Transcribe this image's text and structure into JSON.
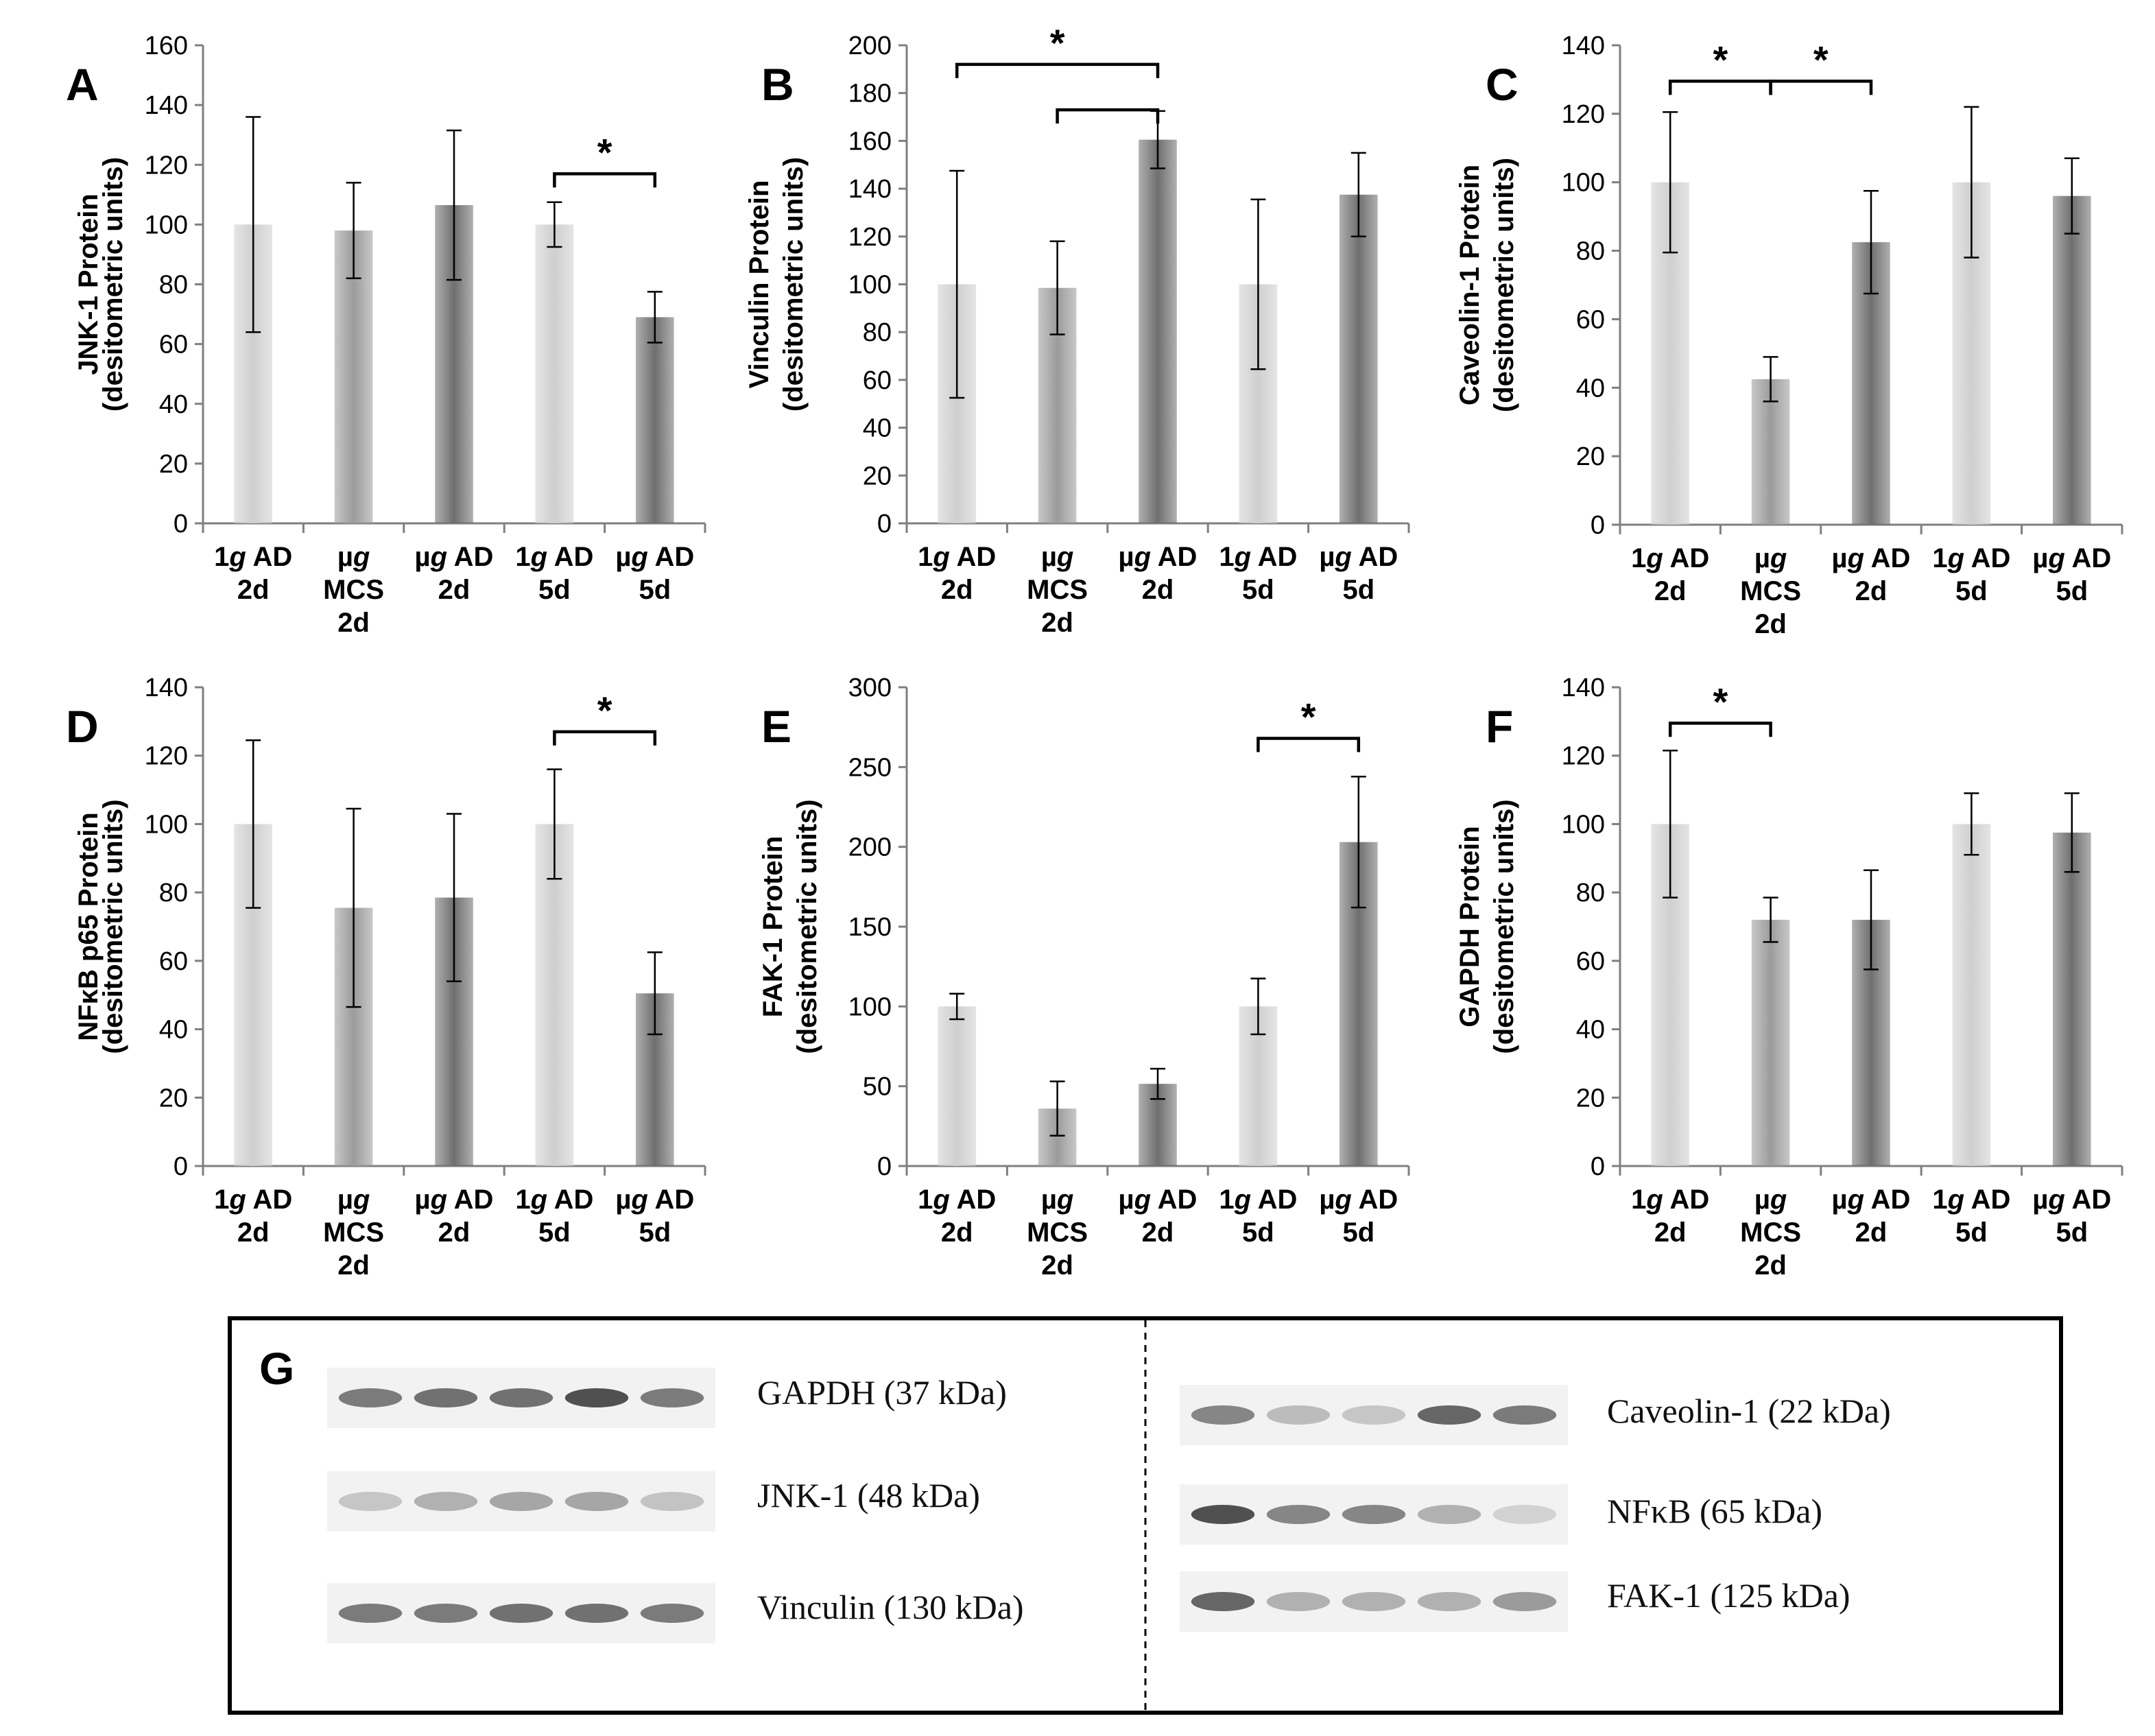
{
  "colors": {
    "bar_light": "#cfcfcf",
    "bar_medium": "#9b9b9b",
    "bar_dark": "#6f6f6f",
    "axis": "#7f7f7f",
    "text": "#000000"
  },
  "chart_data": [
    {
      "panel": "A",
      "type": "bar",
      "ylabel": [
        "JNK-1 Protein",
        "(desitometric units)"
      ],
      "ylim": [
        0,
        160
      ],
      "ytick_step": 20,
      "categories": [
        [
          "1g AD",
          "2d"
        ],
        [
          "µg",
          "MCS",
          "2d"
        ],
        [
          "µg AD",
          "2d"
        ],
        [
          "1g AD",
          "5d"
        ],
        [
          "µg AD",
          "5d"
        ]
      ],
      "values": [
        100,
        98,
        106.5,
        100,
        69
      ],
      "errors": [
        36,
        16,
        25,
        7.5,
        8.5
      ],
      "significance": [
        {
          "from": 3,
          "to": 4,
          "label": "*",
          "level": 117
        }
      ]
    },
    {
      "panel": "B",
      "type": "bar",
      "ylabel": [
        "Vinculin Protein",
        "(desitometric units)"
      ],
      "ylim": [
        0,
        200
      ],
      "ytick_step": 20,
      "categories": [
        [
          "1g AD",
          "2d"
        ],
        [
          "µg",
          "MCS",
          "2d"
        ],
        [
          "µg AD",
          "2d"
        ],
        [
          "1g AD",
          "5d"
        ],
        [
          "µg AD",
          "5d"
        ]
      ],
      "values": [
        100,
        98.5,
        160.5,
        100,
        137.5
      ],
      "errors": [
        47.5,
        19.5,
        12,
        35.5,
        17.5
      ],
      "significance": [
        {
          "from": 0,
          "to": 2,
          "label": "*",
          "level": 192
        },
        {
          "from": 1,
          "to": 2,
          "label": "",
          "level": 173
        }
      ]
    },
    {
      "panel": "C",
      "type": "bar",
      "ylabel": [
        "Caveolin-1 Protein",
        "(desitometric units)"
      ],
      "ylim": [
        0,
        140
      ],
      "ytick_step": 20,
      "categories": [
        [
          "1g AD",
          "2d"
        ],
        [
          "µg",
          "MCS",
          "2d"
        ],
        [
          "µg AD",
          "2d"
        ],
        [
          "1g AD",
          "5d"
        ],
        [
          "µg AD",
          "5d"
        ]
      ],
      "values": [
        100,
        42.5,
        82.5,
        100,
        96
      ],
      "errors": [
        20.5,
        6.5,
        15,
        22,
        11
      ],
      "significance": [
        {
          "from": 0,
          "to": 1,
          "label": "*",
          "level": 129.5
        },
        {
          "from": 1,
          "to": 2,
          "label": "*",
          "level": 129.5
        }
      ]
    },
    {
      "panel": "D",
      "type": "bar",
      "ylabel": [
        "NFκB p65 Protein",
        "(desitometric units)"
      ],
      "ylim": [
        0,
        140
      ],
      "ytick_step": 20,
      "categories": [
        [
          "1g AD",
          "2d"
        ],
        [
          "µg",
          "MCS",
          "2d"
        ],
        [
          "µg AD",
          "2d"
        ],
        [
          "1g AD",
          "5d"
        ],
        [
          "µg AD",
          "5d"
        ]
      ],
      "values": [
        100,
        75.5,
        78.5,
        100,
        50.5
      ],
      "errors": [
        24.5,
        29,
        24.5,
        16,
        12
      ],
      "significance": [
        {
          "from": 3,
          "to": 4,
          "label": "*",
          "level": 127
        }
      ]
    },
    {
      "panel": "E",
      "type": "bar",
      "ylabel": [
        "FAK-1 Protein",
        "(desitometric units)"
      ],
      "ylim": [
        0,
        300
      ],
      "ytick_step": 50,
      "categories": [
        [
          "1g AD",
          "2d"
        ],
        [
          "µg",
          "MCS",
          "2d"
        ],
        [
          "µg AD",
          "2d"
        ],
        [
          "1g AD",
          "5d"
        ],
        [
          "µg AD",
          "5d"
        ]
      ],
      "values": [
        100,
        36,
        51.5,
        100,
        203
      ],
      "errors": [
        8,
        17,
        9.5,
        17.5,
        41
      ],
      "significance": [
        {
          "from": 3,
          "to": 4,
          "label": "*",
          "level": 268
        }
      ]
    },
    {
      "panel": "F",
      "type": "bar",
      "ylabel": [
        "GAPDH Protein",
        "(desitometric units)"
      ],
      "ylim": [
        0,
        140
      ],
      "ytick_step": 20,
      "categories": [
        [
          "1g AD",
          "2d"
        ],
        [
          "µg",
          "MCS",
          "2d"
        ],
        [
          "µg AD",
          "2d"
        ],
        [
          "1g AD",
          "5d"
        ],
        [
          "µg AD",
          "5d"
        ]
      ],
      "values": [
        100,
        72,
        72,
        100,
        97.5
      ],
      "errors": [
        21.5,
        6.5,
        14.5,
        9,
        11.5
      ],
      "significance": [
        {
          "from": 0,
          "to": 1,
          "label": "*",
          "level": 129.5
        }
      ]
    }
  ],
  "blot": {
    "panel": "G",
    "left_labels": [
      "GAPDH (37 kDa)",
      "JNK-1 (48 kDa)",
      "Vinculin (130 kDa)"
    ],
    "right_labels": [
      "Caveolin-1 (22 kDa)",
      "NFκB (65 kDa)",
      "FAK-1 (125 kDa)"
    ],
    "left_intensity": [
      [
        0.55,
        0.6,
        0.6,
        0.75,
        0.55
      ],
      [
        0.2,
        0.3,
        0.35,
        0.35,
        0.22
      ],
      [
        0.55,
        0.55,
        0.6,
        0.6,
        0.55
      ]
    ],
    "right_intensity": [
      [
        0.5,
        0.25,
        0.2,
        0.65,
        0.55
      ],
      [
        0.75,
        0.5,
        0.5,
        0.3,
        0.15
      ],
      [
        0.65,
        0.3,
        0.3,
        0.3,
        0.4
      ]
    ]
  }
}
